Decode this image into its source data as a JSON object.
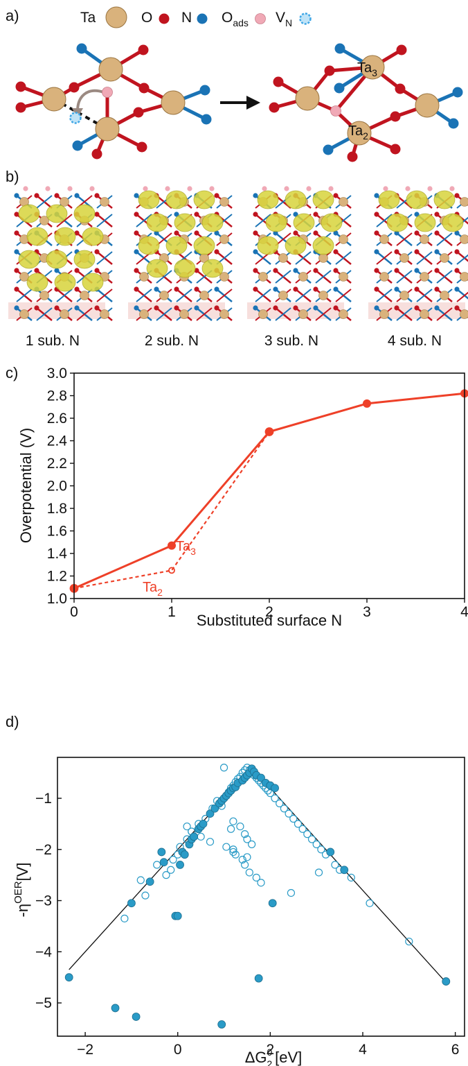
{
  "panel_labels": {
    "a": "a)",
    "b": "b)",
    "c": "c)",
    "d": "d)"
  },
  "legend_a": {
    "ta": "Ta",
    "o": "O",
    "n": "N",
    "oads_main": "O",
    "oads_sub": "ads",
    "vn_main": "V",
    "vn_sub": "N"
  },
  "colors": {
    "ta": "#d9b27c",
    "o": "#c0141f",
    "n": "#1a73b5",
    "oads": "#f0a9b6",
    "vn": "#3ea6e6",
    "bond_red": "#c0141f",
    "bond_blue": "#1a73b5",
    "charge": "#d8d43c",
    "curve": "#ee4028",
    "scatter": "#2a9bc7"
  },
  "structure_labels": {
    "ta3_main": "Ta",
    "ta3_sub": "3",
    "ta2_main": "Ta",
    "ta2_sub": "2"
  },
  "panel_b_captions": [
    "1 sub. N",
    "2 sub. N",
    "3 sub. N",
    "4 sub. N"
  ],
  "chart_data": [
    {
      "type": "line",
      "xlabel": "Substituted surface N",
      "ylabel": "Overpotential (V)",
      "xlim": [
        0,
        4
      ],
      "ylim": [
        1.0,
        3.0
      ],
      "xticks": [
        "0",
        "1",
        "2",
        "3",
        "4"
      ],
      "yticks": [
        "1.0",
        "1.2",
        "1.4",
        "1.6",
        "1.8",
        "2.0",
        "2.2",
        "2.4",
        "2.6",
        "2.8",
        "3.0"
      ],
      "grid": false,
      "series": [
        {
          "name": "Ta2",
          "style": "solid",
          "x": [
            0,
            1,
            2,
            3,
            4
          ],
          "y": [
            1.09,
            1.47,
            2.48,
            2.73,
            2.82
          ]
        },
        {
          "name": "Ta3",
          "style": "dashed",
          "x": [
            0,
            1,
            2
          ],
          "y": [
            1.09,
            1.25,
            2.48
          ]
        }
      ],
      "annotations": [
        {
          "main": "Ta",
          "sub": "2"
        },
        {
          "main": "Ta",
          "sub": "3"
        }
      ]
    },
    {
      "type": "scatter",
      "xlabel_main": "ΔG",
      "xlabel_sup": "0",
      "xlabel_sub": "2",
      "xlabel_unit": "[eV]",
      "ylabel_main": "-η",
      "ylabel_sup": "OER",
      "ylabel_unit": "[V]",
      "xlim": [
        -2.6,
        6.2
      ],
      "ylim": [
        -5.65,
        -0.2
      ],
      "xticks": [
        "−2",
        "0",
        "2",
        "4",
        "6"
      ],
      "yticks": [
        "−1",
        "−2",
        "−3",
        "−4",
        "−5"
      ],
      "grid": false,
      "volcano_line": {
        "x": [
          -2.35,
          1.6,
          5.8
        ],
        "y": [
          -4.35,
          -0.4,
          -4.6
        ]
      },
      "filled_points": {
        "x": [
          -2.35,
          -1.35,
          -0.9,
          -1.0,
          -0.6,
          -0.35,
          -0.3,
          -0.05,
          0.0,
          0.05,
          0.1,
          0.15,
          0.25,
          0.3,
          0.35,
          0.45,
          0.5,
          0.55,
          0.7,
          0.8,
          0.9,
          0.95,
          1.0,
          1.05,
          1.1,
          1.15,
          1.2,
          1.25,
          1.3,
          1.4,
          1.45,
          1.5,
          1.55,
          1.6,
          1.65,
          1.7,
          1.8,
          1.9,
          2.0,
          2.1,
          2.05,
          1.75,
          0.95,
          3.3,
          3.6,
          5.8
        ],
        "y": [
          -4.5,
          -5.1,
          -5.27,
          -3.05,
          -2.63,
          -2.05,
          -2.25,
          -3.3,
          -3.3,
          -2.3,
          -2.05,
          -2.1,
          -1.9,
          -1.8,
          -1.75,
          -1.6,
          -1.55,
          -1.5,
          -1.3,
          -1.2,
          -1.1,
          -1.05,
          -1.0,
          -0.95,
          -0.9,
          -0.85,
          -0.8,
          -0.78,
          -0.7,
          -0.65,
          -0.6,
          -0.55,
          -0.5,
          -0.42,
          -0.48,
          -0.55,
          -0.6,
          -0.7,
          -0.75,
          -0.8,
          -3.05,
          -4.52,
          -5.42,
          -2.05,
          -2.4,
          -4.58
        ]
      },
      "open_points": {
        "x": [
          -1.15,
          -0.8,
          -0.7,
          -0.45,
          -0.25,
          -0.15,
          -0.1,
          0.0,
          0.05,
          0.2,
          0.3,
          0.45,
          0.6,
          0.75,
          0.85,
          0.95,
          1.05,
          1.1,
          1.15,
          1.2,
          1.25,
          1.3,
          1.35,
          1.4,
          1.45,
          1.5,
          1.55,
          1.6,
          1.65,
          1.7,
          1.75,
          1.8,
          1.85,
          1.9,
          1.95,
          2.0,
          2.1,
          2.2,
          2.3,
          2.4,
          2.5,
          2.6,
          2.7,
          2.8,
          2.9,
          3.0,
          3.1,
          3.2,
          3.4,
          3.5,
          3.75,
          4.15,
          5.0,
          1.2,
          1.35,
          1.45,
          1.5,
          1.6,
          1.2,
          1.25,
          1.4,
          1.45,
          1.55,
          1.7,
          1.8,
          0.2,
          0.3,
          0.5,
          0.7,
          1.05,
          1.2,
          1.5,
          1.0,
          2.45,
          3.05,
          1.15
        ],
        "y": [
          -3.35,
          -2.6,
          -2.9,
          -2.3,
          -2.5,
          -2.4,
          -2.2,
          -2.1,
          -1.95,
          -1.8,
          -1.65,
          -1.5,
          -1.4,
          -1.2,
          -1.05,
          -1.15,
          -0.95,
          -0.88,
          -0.8,
          -0.75,
          -0.68,
          -0.62,
          -0.58,
          -0.5,
          -0.45,
          -0.4,
          -0.45,
          -0.5,
          -0.55,
          -0.6,
          -0.65,
          -0.7,
          -0.75,
          -0.8,
          -0.85,
          -0.9,
          -1.0,
          -1.1,
          -1.2,
          -1.3,
          -1.4,
          -1.5,
          -1.6,
          -1.7,
          -1.8,
          -1.9,
          -2.0,
          -2.1,
          -2.3,
          -2.4,
          -2.55,
          -3.05,
          -3.8,
          -1.45,
          -1.55,
          -1.7,
          -1.8,
          -1.9,
          -2.0,
          -2.1,
          -2.2,
          -2.3,
          -2.45,
          -2.55,
          -2.65,
          -1.55,
          -1.65,
          -1.75,
          -1.85,
          -1.95,
          -2.05,
          -2.15,
          -0.4,
          -2.85,
          -2.45,
          -1.6
        ]
      }
    }
  ]
}
